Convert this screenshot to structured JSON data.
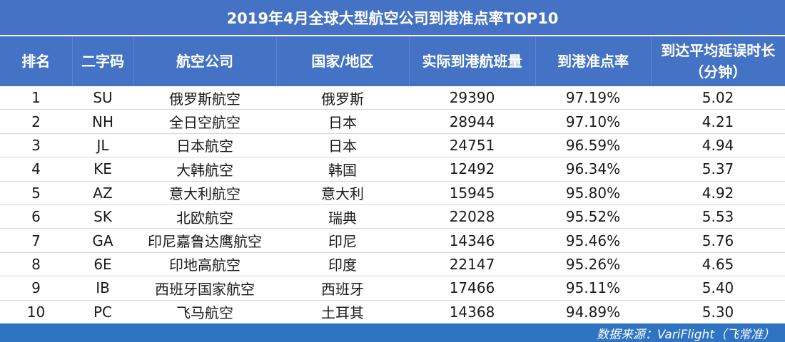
{
  "chart_data": {
    "type": "table",
    "title": "2019年4月全球大型航空公司到港准点率TOP10",
    "columns": [
      "排名",
      "二字码",
      "航空公司",
      "国家/地区",
      "实际到港航班量",
      "到港准点率",
      "到达平均延误时长（分钟）"
    ],
    "column_labels": [
      "排名",
      "二字码",
      "航空公司",
      "国家/地区",
      "实际到港航班量",
      "到港准点率",
      "到达平均延误时长",
      "（分钟）"
    ],
    "rows": [
      [
        "1",
        "SU",
        "俄罗斯航空",
        "俄罗斯",
        "29390",
        "97.19%",
        "5.02"
      ],
      [
        "2",
        "NH",
        "全日空航空",
        "日本",
        "28944",
        "97.10%",
        "4.21"
      ],
      [
        "3",
        "JL",
        "日本航空",
        "日本",
        "24751",
        "96.59%",
        "4.94"
      ],
      [
        "4",
        "KE",
        "大韩航空",
        "韩国",
        "12492",
        "96.34%",
        "5.37"
      ],
      [
        "5",
        "AZ",
        "意大利航空",
        "意大利",
        "15945",
        "95.80%",
        "4.92"
      ],
      [
        "6",
        "SK",
        "北欧航空",
        "瑞典",
        "22028",
        "95.52%",
        "5.53"
      ],
      [
        "7",
        "GA",
        "印尼嘉鲁达鹰航空",
        "印尼",
        "14346",
        "95.46%",
        "5.76"
      ],
      [
        "8",
        "6E",
        "印地高航空",
        "印度",
        "22147",
        "95.26%",
        "4.65"
      ],
      [
        "9",
        "IB",
        "西班牙国家航空",
        "西班牙",
        "17466",
        "95.11%",
        "5.40"
      ],
      [
        "10",
        "PC",
        "飞马航空",
        "土耳其",
        "14368",
        "94.89%",
        "5.30"
      ]
    ],
    "source": "数据来源：VariFlight（飞常准）"
  },
  "colors": {
    "header_bg": "#4472c4",
    "footer_bg": "#2e74c2",
    "header_text": "#ffffff",
    "body_text": "#1a1a1a"
  }
}
